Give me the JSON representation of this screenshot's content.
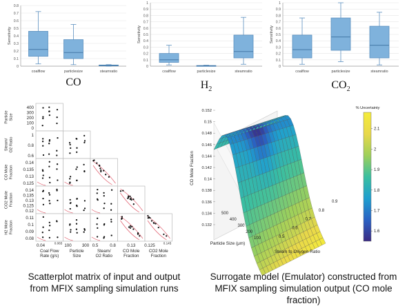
{
  "colors": {
    "box_fill": "#7fb2dc",
    "box_stroke": "#5a8fbf",
    "fit_curve": "#e05a6a",
    "colorbar": [
      "#3b2a82",
      "#2a62c4",
      "#1f9fcf",
      "#3bbfa0",
      "#9fd05a",
      "#e8d84a",
      "#f5ec3a"
    ]
  },
  "chart_data": [
    {
      "type": "box",
      "title": "CO",
      "ylabel": "Sensitivity",
      "ylim": [
        0,
        0.8
      ],
      "yticks": [
        "0",
        "0.1",
        "0.2",
        "0.3",
        "0.4",
        "0.5",
        "0.6",
        "0.7",
        "0.8"
      ],
      "categories": [
        "coalflow",
        "particlesize",
        "steamratio"
      ],
      "boxes": [
        {
          "min": 0.03,
          "q1": 0.13,
          "median": 0.22,
          "q3": 0.46,
          "max": 0.72
        },
        {
          "min": 0.02,
          "q1": 0.1,
          "median": 0.18,
          "q3": 0.35,
          "max": 0.55
        },
        {
          "min": 0.0,
          "q1": 0.005,
          "median": 0.01,
          "q3": 0.015,
          "max": 0.02
        }
      ]
    },
    {
      "type": "box",
      "title": "H",
      "title_sub": "2",
      "ylabel": "Sensitivity",
      "ylim": [
        0,
        1
      ],
      "yticks": [
        "0",
        "0.1",
        "0.2",
        "0.3",
        "0.4",
        "0.5",
        "0.6",
        "0.7",
        "0.8",
        "0.9",
        "1"
      ],
      "categories": [
        "coalflow",
        "particlesize",
        "steamratio"
      ],
      "boxes": [
        {
          "min": 0.02,
          "q1": 0.06,
          "median": 0.1,
          "q3": 0.2,
          "max": 0.33
        },
        {
          "min": 0.0,
          "q1": 0.003,
          "median": 0.005,
          "q3": 0.01,
          "max": 0.015
        },
        {
          "min": 0.03,
          "q1": 0.13,
          "median": 0.23,
          "q3": 0.49,
          "max": 0.77
        }
      ]
    },
    {
      "type": "box",
      "title": "CO",
      "title_sub": "2",
      "ylabel": "Sensitivity",
      "ylim": [
        0,
        1
      ],
      "yticks": [
        "0",
        "0.1",
        "0.2",
        "0.3",
        "0.4",
        "0.5",
        "0.6",
        "0.7",
        "0.8",
        "0.9",
        "1"
      ],
      "categories": [
        "coalflow",
        "particlesize",
        "steamratio"
      ],
      "boxes": [
        {
          "min": 0.03,
          "q1": 0.13,
          "median": 0.26,
          "q3": 0.49,
          "max": 0.76
        },
        {
          "min": 0.07,
          "q1": 0.25,
          "median": 0.46,
          "q3": 0.76,
          "max": 1.0
        },
        {
          "min": 0.02,
          "q1": 0.13,
          "median": 0.33,
          "q3": 0.63,
          "max": 0.85
        }
      ]
    },
    {
      "type": "scatter-matrix",
      "variables": [
        {
          "label": [
            "Coal Flow",
            "Rate (g/s)"
          ],
          "ticks": [
            "0.04",
            "0.065"
          ]
        },
        {
          "label": [
            "Particle",
            "Size"
          ],
          "ticks": [
            "100",
            "300"
          ],
          "row_ticks": [
            "400",
            "300",
            "200",
            "100",
            "0"
          ]
        },
        {
          "label": [
            "Steam/",
            "O2 Ratio"
          ],
          "ticks": [
            "0.5",
            "0.8"
          ],
          "row_ticks": [
            "1",
            "0.8",
            "0.6"
          ]
        },
        {
          "label": [
            "CO Mole",
            "Fraction"
          ],
          "ticks": [
            "0.13"
          ],
          "row_ticks": [
            "0.14",
            "0.135",
            "0.13",
            "0.125"
          ]
        },
        {
          "label": [
            "CO2 Mole",
            "Fraction"
          ],
          "ticks": [
            "0.125",
            "0.145"
          ],
          "row_ticks": [
            "0.14",
            "0.135",
            "0.13",
            "0.125",
            "0.12"
          ]
        },
        {
          "label": [
            "H2 Mole",
            "Fraction"
          ],
          "row_ticks": [
            "0.11",
            "0.1",
            "0.09",
            "0.08"
          ]
        }
      ]
    },
    {
      "type": "surface",
      "colorbar_title": "% Uncertainty",
      "colorbar_ticks": [
        "2.1",
        "2",
        "1.9",
        "1.8",
        "1.7",
        "1.6"
      ],
      "colorbar_range": [
        1.55,
        2.18
      ],
      "zlabel": "CO Mole Fraction",
      "zticks": [
        "0.152",
        "0.15",
        "0.148",
        "0.146",
        "0.144",
        "0.142",
        "0.14",
        "0.138",
        "0.136",
        "0.134",
        "0.132"
      ],
      "xlabel": "Particle Size (μm)",
      "xticks": [
        "500",
        "400",
        "300",
        "200",
        "100"
      ],
      "ylabel": "Steam to Oxygen Ratio",
      "yticks": [
        "0.9",
        "0.8",
        "0.7",
        "0.6",
        "0.5"
      ]
    }
  ],
  "captions": {
    "left": [
      "Scatterplot matrix of input and output",
      "from MFIX sampling simulation runs"
    ],
    "right": [
      "Surrogate model (Emulator) constructed from",
      "MFIX sampling simulation output (CO mole fraction)"
    ]
  }
}
